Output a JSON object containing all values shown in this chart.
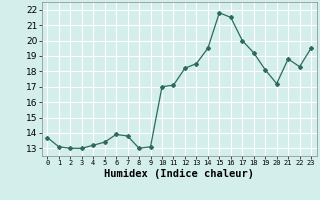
{
  "x": [
    0,
    1,
    2,
    3,
    4,
    5,
    6,
    7,
    8,
    9,
    10,
    11,
    12,
    13,
    14,
    15,
    16,
    17,
    18,
    19,
    20,
    21,
    22,
    23
  ],
  "y": [
    13.7,
    13.1,
    13.0,
    13.0,
    13.2,
    13.4,
    13.9,
    13.8,
    13.0,
    13.1,
    17.0,
    17.1,
    18.2,
    18.5,
    19.5,
    21.8,
    21.5,
    20.0,
    19.2,
    18.1,
    17.2,
    18.8,
    18.3,
    19.5
  ],
  "xlabel": "Humidex (Indice chaleur)",
  "ylim": [
    12.5,
    22.5
  ],
  "xlim": [
    -0.5,
    23.5
  ],
  "yticks": [
    13,
    14,
    15,
    16,
    17,
    18,
    19,
    20,
    21,
    22
  ],
  "xtick_labels": [
    "0",
    "1",
    "2",
    "3",
    "4",
    "5",
    "6",
    "7",
    "8",
    "9",
    "10",
    "11",
    "12",
    "13",
    "14",
    "15",
    "16",
    "17",
    "18",
    "19",
    "20",
    "21",
    "22",
    "23"
  ],
  "line_color": "#2d6b5e",
  "marker": "D",
  "marker_size": 2.0,
  "bg_color": "#d4eeeb",
  "grid_color": "#ffffff",
  "xlabel_fontsize": 7.5,
  "ytick_fontsize": 6.5,
  "xtick_fontsize": 5.0
}
